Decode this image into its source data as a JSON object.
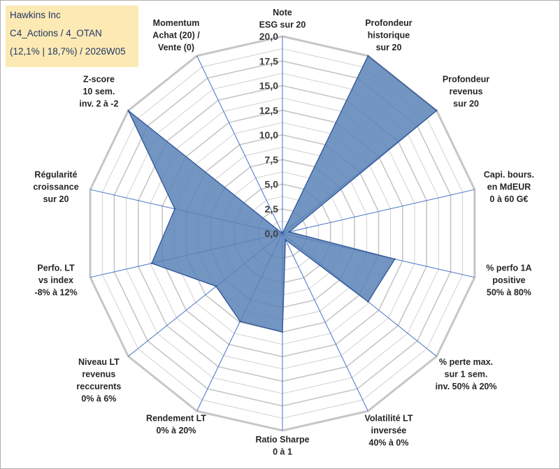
{
  "info": {
    "company": "Hawkins Inc",
    "category": "C4_Actions / 4_OTAN",
    "stats": "(12,1% | 18,7%) / 2026W05"
  },
  "colors": {
    "fill": "#5b83b7",
    "stroke": "#2f5597",
    "grid": "#c6c6c6",
    "spoke": "#4472c4",
    "info_bg": "#fde9b4",
    "info_text": "#1f3864"
  },
  "chart_data": {
    "type": "radar",
    "title": "",
    "range": [
      0,
      20
    ],
    "tick_step": 2.5,
    "tick_labels": [
      "0,0",
      "2,5",
      "5,0",
      "7,5",
      "10,0",
      "12,5",
      "15,0",
      "17,5",
      "20,0"
    ],
    "axes": [
      [
        "Note",
        "ESG sur 20"
      ],
      [
        "Profondeur",
        "historique",
        "sur 20"
      ],
      [
        "Profondeur",
        "revenus",
        "sur 20"
      ],
      [
        "Capi. bours.",
        "en MdEUR",
        "0 à 60 G€"
      ],
      [
        "% perfo 1A",
        "positive",
        "50% à 80%"
      ],
      [
        "% perte max.",
        "sur 1 sem.",
        "inv. 50% à 20%"
      ],
      [
        "Volatilité LT",
        "inversée",
        "40% à 0%"
      ],
      [
        "Ratio Sharpe",
        "0 à 1"
      ],
      [
        "Rendement LT",
        "0% à 20%"
      ],
      [
        "Niveau LT",
        "revenus",
        "reccurents",
        "0% à 6%"
      ],
      [
        "Perfo. LT",
        "vs index",
        "-8% à 12%"
      ],
      [
        "Régularité",
        "croissance",
        "sur 20"
      ],
      [
        "Z-score",
        "10 sem.",
        "inv. 2 à -2"
      ],
      [
        "Momentum",
        "Achat (20) /",
        "Vente (0)"
      ]
    ],
    "series": [
      {
        "name": "Hawkins Inc",
        "values": [
          0,
          20,
          20,
          0.7,
          11.7,
          11.1,
          0.7,
          10.0,
          9.9,
          8.6,
          13.6,
          11.2,
          20,
          0
        ]
      }
    ]
  }
}
